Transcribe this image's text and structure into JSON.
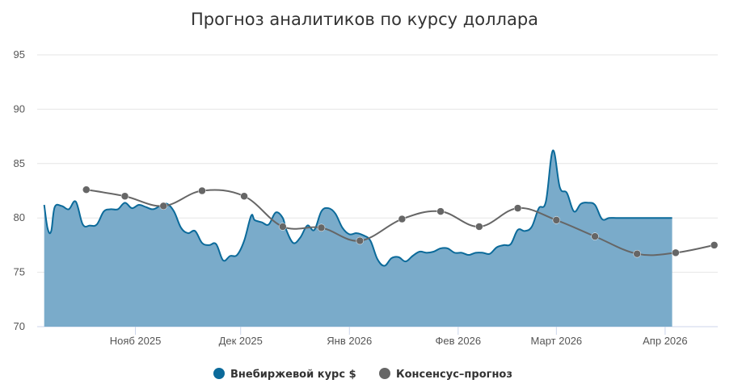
{
  "chart_data": {
    "type": "line",
    "title": "Прогноз аналитиков по курсу доллара",
    "ylim": [
      70,
      95
    ],
    "yticks": [
      "70",
      "75",
      "80",
      "85",
      "90",
      "95"
    ],
    "xlim": [
      "2025-10-04",
      "2026-04-16"
    ],
    "xticks": [
      {
        "date": "2025-11-01",
        "label": "Нояб 2025"
      },
      {
        "date": "2025-12-01",
        "label": "Дек 2025"
      },
      {
        "date": "2026-01-01",
        "label": "Янв 2026"
      },
      {
        "date": "2026-02-01",
        "label": "Фев 2026"
      },
      {
        "date": "2026-03-01",
        "label": "Март 2026"
      },
      {
        "date": "2026-04-01",
        "label": "Апр 2026"
      }
    ],
    "legend_position": "bottom-center",
    "series": [
      {
        "name": "Внебиржевой курс $",
        "kind": "area",
        "color": "#0b6a9a",
        "fill": "#7aabca",
        "x": [
          "2025-10-06",
          "2025-10-07",
          "2025-10-08",
          "2025-10-09",
          "2025-10-11",
          "2025-10-13",
          "2025-10-15",
          "2025-10-17",
          "2025-10-19",
          "2025-10-21",
          "2025-10-23",
          "2025-10-25",
          "2025-10-27",
          "2025-10-29",
          "2025-10-31",
          "2025-11-02",
          "2025-11-04",
          "2025-11-06",
          "2025-11-08",
          "2025-11-10",
          "2025-11-12",
          "2025-11-14",
          "2025-11-16",
          "2025-11-18",
          "2025-11-20",
          "2025-11-22",
          "2025-11-24",
          "2025-11-26",
          "2025-11-28",
          "2025-11-30",
          "2025-12-02",
          "2025-12-04",
          "2025-12-05",
          "2025-12-07",
          "2025-12-09",
          "2025-12-11",
          "2025-12-13",
          "2025-12-14",
          "2025-12-16",
          "2025-12-18",
          "2025-12-20",
          "2025-12-22",
          "2025-12-24",
          "2025-12-26",
          "2025-12-28",
          "2025-12-30",
          "2026-01-01",
          "2026-01-03",
          "2026-01-05",
          "2026-01-07",
          "2026-01-09",
          "2026-01-11",
          "2026-01-13",
          "2026-01-15",
          "2026-01-17",
          "2026-01-19",
          "2026-01-21",
          "2026-01-23",
          "2026-01-25",
          "2026-01-27",
          "2026-01-29",
          "2026-01-31",
          "2026-02-02",
          "2026-02-04",
          "2026-02-06",
          "2026-02-08",
          "2026-02-10",
          "2026-02-12",
          "2026-02-14",
          "2026-02-16",
          "2026-02-18",
          "2026-02-20",
          "2026-02-22",
          "2026-02-24",
          "2026-02-26",
          "2026-02-28",
          "2026-03-02",
          "2026-03-04",
          "2026-03-06",
          "2026-03-08",
          "2026-03-10",
          "2026-03-12",
          "2026-03-14",
          "2026-03-16",
          "2026-03-18",
          "2026-03-20",
          "2026-03-22",
          "2026-03-24",
          "2026-03-26",
          "2026-03-28",
          "2026-03-30",
          "2026-04-01",
          "2026-04-03"
        ],
        "y": [
          81.2,
          79.0,
          78.8,
          81.0,
          81.1,
          80.8,
          81.5,
          79.4,
          79.3,
          79.4,
          80.6,
          80.8,
          80.8,
          81.4,
          80.9,
          81.2,
          81.0,
          80.8,
          81.1,
          81.3,
          80.6,
          79.1,
          78.6,
          78.8,
          77.7,
          77.5,
          77.6,
          76.1,
          76.5,
          76.6,
          77.9,
          80.2,
          79.8,
          79.6,
          79.4,
          80.5,
          80.0,
          78.9,
          77.7,
          78.2,
          79.3,
          78.9,
          80.6,
          80.9,
          80.4,
          79.1,
          78.5,
          78.6,
          78.4,
          77.9,
          76.2,
          75.6,
          76.3,
          76.4,
          76.0,
          76.5,
          76.9,
          76.8,
          76.9,
          77.2,
          77.2,
          76.8,
          76.8,
          76.6,
          76.8,
          76.8,
          76.7,
          77.3,
          77.5,
          77.6,
          78.9,
          78.8,
          79.2,
          80.9,
          81.5,
          86.2,
          82.8,
          82.3,
          80.6,
          81.3,
          81.4,
          81.2,
          79.9,
          80.0,
          80.0,
          80.0,
          80.0,
          80.0,
          80.0,
          80.0,
          80.0,
          80.0,
          80.0
        ]
      },
      {
        "name": "Консенсус–прогноз",
        "kind": "line",
        "color": "#666666",
        "x": [
          "2025-10-18",
          "2025-10-29",
          "2025-11-09",
          "2025-11-20",
          "2025-12-02",
          "2025-12-13",
          "2025-12-24",
          "2026-01-04",
          "2026-01-16",
          "2026-01-27",
          "2026-02-07",
          "2026-02-18",
          "2026-03-01",
          "2026-03-12",
          "2026-03-24",
          "2026-04-04",
          "2026-04-15"
        ],
        "y": [
          82.6,
          82.0,
          81.1,
          82.5,
          82.0,
          79.2,
          79.1,
          77.9,
          79.9,
          80.6,
          79.2,
          80.9,
          79.8,
          78.3,
          76.7,
          76.8,
          77.5
        ]
      }
    ]
  }
}
